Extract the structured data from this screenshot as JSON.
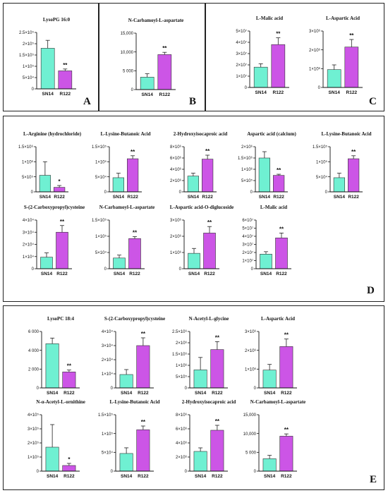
{
  "colors": {
    "sn14": "#6ff0d2",
    "r122": "#cc55e6",
    "border": "#222222"
  },
  "panels": [
    {
      "id": "A",
      "label": "A"
    },
    {
      "id": "B",
      "label": "B"
    },
    {
      "id": "C",
      "label": "C"
    },
    {
      "id": "D",
      "label": "D"
    },
    {
      "id": "E",
      "label": "E"
    }
  ],
  "chart_data": [
    {
      "type": "bar",
      "title": "LysoPG 16:0",
      "categories": [
        "SN14",
        "R122"
      ],
      "values": [
        180000,
        80000
      ],
      "errors": [
        35000,
        8000
      ],
      "sig": "**",
      "ylim": [
        0,
        250000
      ],
      "yticks": [
        0,
        50000,
        100000,
        150000,
        200000,
        250000
      ],
      "ytick_labels": [
        "0",
        "5×10⁴",
        "1×10⁵",
        "1.5×10⁵",
        "2×10⁵",
        "2.5×10⁵"
      ]
    },
    {
      "type": "bar",
      "title": "N-Carbamoyl-L-aspartate",
      "categories": [
        "SN14",
        "R122"
      ],
      "values": [
        3300,
        9300
      ],
      "errors": [
        900,
        600
      ],
      "sig": "**",
      "ylim": [
        0,
        15000
      ],
      "yticks": [
        0,
        5000,
        10000,
        15000
      ],
      "ytick_labels": [
        "0",
        "5 000",
        "10,000",
        "15,000"
      ]
    },
    {
      "type": "bar",
      "title": "L-Malic acid",
      "categories": [
        "SN14",
        "R122"
      ],
      "values": [
        18000000,
        38000000
      ],
      "errors": [
        3000000,
        6000000
      ],
      "sig": "**",
      "ylim": [
        0,
        50000000
      ],
      "yticks": [
        0,
        10000000,
        20000000,
        30000000,
        40000000,
        50000000
      ],
      "ytick_labels": [
        "0",
        "1×10⁷",
        "2×10⁷",
        "3×10⁷",
        "4×10⁷",
        "5×10⁷"
      ]
    },
    {
      "type": "bar",
      "title": "L-Aspartic Acid",
      "categories": [
        "SN14",
        "R122"
      ],
      "values": [
        950000,
        2150000
      ],
      "errors": [
        250000,
        400000
      ],
      "sig": "**",
      "ylim": [
        0,
        3000000
      ],
      "yticks": [
        0,
        1000000,
        2000000,
        3000000
      ],
      "ytick_labels": [
        "0",
        "1×10⁶",
        "2×10⁶",
        "3×10⁶"
      ]
    },
    {
      "type": "bar",
      "title": "L-Arginine (hydrochloride)",
      "categories": [
        "SN14",
        "R122"
      ],
      "values": [
        550000,
        150000
      ],
      "errors": [
        450000,
        60000
      ],
      "sig": "*",
      "ylim": [
        0,
        1500000
      ],
      "yticks": [
        0,
        500000,
        1000000,
        1500000
      ],
      "ytick_labels": [
        "0",
        "5×10⁵",
        "1×10⁶",
        "1.5×10⁶"
      ]
    },
    {
      "type": "bar",
      "title": "L-Lysine-Butanoic Acid",
      "categories": [
        "SN14",
        "R122"
      ],
      "values": [
        47000,
        110000
      ],
      "errors": [
        15000,
        10000
      ],
      "sig": "**",
      "ylim": [
        0,
        150000
      ],
      "yticks": [
        0,
        50000,
        100000,
        150000
      ],
      "ytick_labels": [
        "0",
        "5×10⁴",
        "1×10⁵",
        "1.5×10⁵"
      ]
    },
    {
      "type": "bar",
      "title": "2-Hydroxyisocaproic acid",
      "categories": [
        "SN14",
        "R122"
      ],
      "values": [
        2800000,
        5800000
      ],
      "errors": [
        500000,
        700000
      ],
      "sig": "**",
      "ylim": [
        0,
        8000000
      ],
      "yticks": [
        0,
        2000000,
        4000000,
        6000000,
        8000000
      ],
      "ytick_labels": [
        "0",
        "2×10⁶",
        "4×10⁶",
        "6×10⁶",
        "8×10⁶"
      ]
    },
    {
      "type": "bar",
      "title": "Aspartic acid (calcium)",
      "categories": [
        "SN14",
        "R122"
      ],
      "values": [
        1500000,
        730000
      ],
      "errors": [
        280000,
        50000
      ],
      "sig": "**",
      "ylim": [
        0,
        2000000
      ],
      "yticks": [
        0,
        500000,
        1000000,
        1500000,
        2000000
      ],
      "ytick_labels": [
        "0",
        "5×10⁵",
        "1×10⁶",
        "1.5×10⁶",
        "2×10⁶"
      ]
    },
    {
      "type": "bar",
      "title": "L-Lysine-Butanoic Acid",
      "categories": [
        "SN14",
        "R122"
      ],
      "values": [
        47000,
        110000
      ],
      "errors": [
        15000,
        10000
      ],
      "sig": "**",
      "ylim": [
        0,
        150000
      ],
      "yticks": [
        0,
        50000,
        100000,
        150000
      ],
      "ytick_labels": [
        "0",
        "5×10⁴",
        "1×10⁵",
        "1.5×10⁵"
      ]
    },
    {
      "type": "bar",
      "title": "S-(2-Carboxypropyl)cysteine",
      "categories": [
        "SN14",
        "R122"
      ],
      "values": [
        9500,
        30000
      ],
      "errors": [
        3500,
        5500
      ],
      "sig": "**",
      "ylim": [
        0,
        40000
      ],
      "yticks": [
        0,
        10000,
        20000,
        30000,
        40000
      ],
      "ytick_labels": [
        "0",
        "1×10⁴",
        "2×10⁴",
        "3×10⁴",
        "4×10⁴"
      ]
    },
    {
      "type": "bar",
      "title": "N-Carbamoyl-L-aspartate",
      "categories": [
        "SN14",
        "R122"
      ],
      "values": [
        33000,
        93000
      ],
      "errors": [
        9000,
        6000
      ],
      "sig": "**",
      "ylim": [
        0,
        150000
      ],
      "yticks": [
        0,
        50000,
        100000,
        150000
      ],
      "ytick_labels": [
        "0",
        "5×10⁴",
        "1×10⁵",
        "1.5×10⁵"
      ]
    },
    {
      "type": "bar",
      "title": "L-Aspartic acid-O-diglucoside",
      "categories": [
        "SN14",
        "R122"
      ],
      "values": [
        950000,
        2200000
      ],
      "errors": [
        300000,
        400000
      ],
      "sig": "**",
      "ylim": [
        0,
        3000000
      ],
      "yticks": [
        0,
        1000000,
        2000000,
        3000000
      ],
      "ytick_labels": [
        "0",
        "1×10⁶",
        "2×10⁶",
        "3×10⁶"
      ]
    },
    {
      "type": "bar",
      "title": "L-Malic acid",
      "categories": [
        "SN14",
        "R122"
      ],
      "values": [
        18000000,
        38000000
      ],
      "errors": [
        3000000,
        6000000
      ],
      "sig": "**",
      "ylim": [
        0,
        60000000
      ],
      "yticks": [
        0,
        10000000,
        20000000,
        30000000,
        40000000,
        50000000,
        60000000
      ],
      "ytick_labels": [
        "0",
        "1×10⁷",
        "2×10⁷",
        "3×10⁷",
        "4×10⁷",
        "5×10⁷",
        "6×10⁷"
      ]
    },
    {
      "type": "bar",
      "title": "LysoPC 18:4",
      "categories": [
        "SN14",
        "R122"
      ],
      "values": [
        4700,
        1700
      ],
      "errors": [
        600,
        200
      ],
      "sig": "**",
      "ylim": [
        0,
        6000
      ],
      "yticks": [
        0,
        2000,
        4000,
        6000
      ],
      "ytick_labels": [
        "0",
        "2 000",
        "4 000",
        "6 000"
      ]
    },
    {
      "type": "bar",
      "title": "S-(2-Carboxypropyl)cysteine",
      "categories": [
        "SN14",
        "R122"
      ],
      "values": [
        9500,
        30000
      ],
      "errors": [
        3500,
        5500
      ],
      "sig": "**",
      "ylim": [
        0,
        40000
      ],
      "yticks": [
        0,
        10000,
        20000,
        30000,
        40000
      ],
      "ytick_labels": [
        "0",
        "1×10⁴",
        "2×10⁴",
        "3×10⁴",
        "4×10⁴"
      ]
    },
    {
      "type": "bar",
      "title": "N-Acetyl-L-glycine",
      "categories": [
        "SN14",
        "R122"
      ],
      "values": [
        800000,
        1700000
      ],
      "errors": [
        550000,
        350000
      ],
      "sig": "**",
      "ylim": [
        0,
        2500000
      ],
      "yticks": [
        0,
        500000,
        1000000,
        1500000,
        2000000,
        2500000
      ],
      "ytick_labels": [
        "0",
        "5×10⁵",
        "1×10⁶",
        "1.5×10⁶",
        "2×10⁶",
        "2.5×10⁶"
      ]
    },
    {
      "type": "bar",
      "title": "L-Aspartic Acid",
      "categories": [
        "SN14",
        "R122"
      ],
      "values": [
        950000,
        2200000
      ],
      "errors": [
        300000,
        400000
      ],
      "sig": "**",
      "ylim": [
        0,
        3000000
      ],
      "yticks": [
        0,
        1000000,
        2000000,
        3000000
      ],
      "ytick_labels": [
        "0",
        "1×10⁶",
        "2×10⁶",
        "3×10⁶"
      ]
    },
    {
      "type": "bar",
      "title": "N-α-Acetyl-L-ornithine",
      "categories": [
        "SN14",
        "R122"
      ],
      "values": [
        170000,
        40000
      ],
      "errors": [
        160000,
        15000
      ],
      "sig": "*",
      "ylim": [
        0,
        400000
      ],
      "yticks": [
        0,
        100000,
        200000,
        300000,
        400000
      ],
      "ytick_labels": [
        "0",
        "1×10⁵",
        "2×10⁵",
        "3×10⁵",
        "4×10⁵"
      ]
    },
    {
      "type": "bar",
      "title": "L-Lysine-Butanoic Acid",
      "categories": [
        "SN14",
        "R122"
      ],
      "values": [
        47000,
        110000
      ],
      "errors": [
        15000,
        10000
      ],
      "sig": "**",
      "ylim": [
        0,
        150000
      ],
      "yticks": [
        0,
        50000,
        100000,
        150000
      ],
      "ytick_labels": [
        "0",
        "5×10⁴",
        "1×10⁵",
        "1.5×10⁵"
      ]
    },
    {
      "type": "bar",
      "title": "2-Hydroxyisocaproic acid",
      "categories": [
        "SN14",
        "R122"
      ],
      "values": [
        2800000,
        5800000
      ],
      "errors": [
        500000,
        700000
      ],
      "sig": "**",
      "ylim": [
        0,
        8000000
      ],
      "yticks": [
        0,
        2000000,
        4000000,
        6000000,
        8000000
      ],
      "ytick_labels": [
        "0",
        "2×10⁶",
        "4×10⁶",
        "6×10⁶",
        "8×10⁶"
      ]
    },
    {
      "type": "bar",
      "title": "N-Carbamoyl-L-aspartate",
      "categories": [
        "SN14",
        "R122"
      ],
      "values": [
        3300,
        9300
      ],
      "errors": [
        900,
        600
      ],
      "sig": "**",
      "ylim": [
        0,
        15000
      ],
      "yticks": [
        0,
        5000,
        10000,
        15000
      ],
      "ytick_labels": [
        "0",
        "5 000",
        "10,000",
        "15,000"
      ]
    }
  ]
}
